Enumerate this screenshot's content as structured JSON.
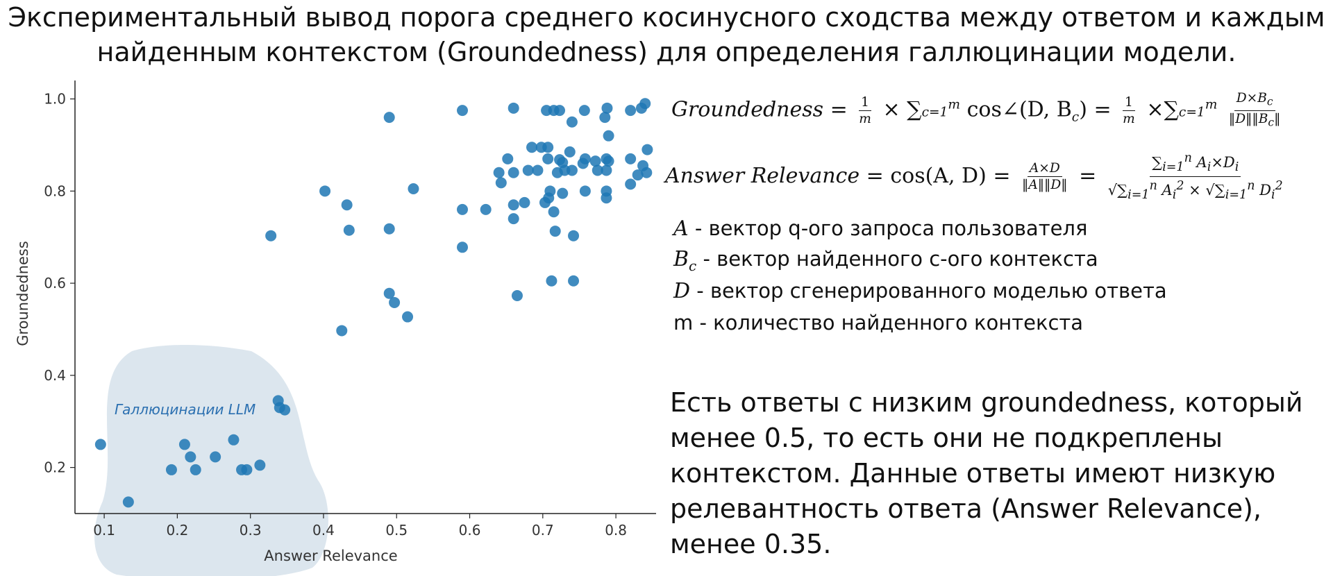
{
  "title": {
    "line1": "Экспериментальный вывод порога среднего косинусного сходства между ответом и каждым",
    "line2": "найденным контекстом (Groundedness) для определения галлюцинации модели."
  },
  "formulas": {
    "groundedness_lhs": "Groundedness",
    "groundedness_mid": "cos∠(D, B",
    "answer_relevance_lhs": "Answer Relevance",
    "answer_relevance_mid": "cos(A, D)"
  },
  "legend": [
    {
      "symbol": "A",
      "sub": "",
      "text": " - вектор q-ого запроса пользователя"
    },
    {
      "symbol": "B",
      "sub": "c",
      "text": " - вектор найденного с-ого контекста"
    },
    {
      "symbol": "D",
      "sub": "",
      "text": " - вектор сгенерированного моделью ответа"
    },
    {
      "symbol": "",
      "sub": "",
      "text": "m - количество найденного контекста"
    }
  ],
  "note": "Есть ответы с низким groundedness, который менее 0.5, то есть они не подкреплены контекстом. Данные ответы имеют низкую релевантность ответа (Answer Relevance), менее 0.35.",
  "chart_data": {
    "type": "scatter",
    "xlabel": "Answer Relevance",
    "ylabel": "Groundedness",
    "xlim": [
      0.06,
      0.855
    ],
    "ylim": [
      0.1,
      1.04
    ],
    "xticks": [
      0.1,
      0.2,
      0.3,
      0.4,
      0.5,
      0.6,
      0.7,
      0.8
    ],
    "yticks": [
      0.2,
      0.4,
      0.6,
      0.8,
      1.0
    ],
    "grid": false,
    "point_color": "#1f77b4",
    "region": {
      "label": "Галлюцинации LLM",
      "fill": "#dce6ee",
      "label_color": "#2a6fb0"
    },
    "points": [
      {
        "x": 0.095,
        "y": 0.25
      },
      {
        "x": 0.133,
        "y": 0.125
      },
      {
        "x": 0.192,
        "y": 0.195
      },
      {
        "x": 0.21,
        "y": 0.25
      },
      {
        "x": 0.218,
        "y": 0.223
      },
      {
        "x": 0.225,
        "y": 0.195
      },
      {
        "x": 0.252,
        "y": 0.223
      },
      {
        "x": 0.277,
        "y": 0.26
      },
      {
        "x": 0.288,
        "y": 0.195
      },
      {
        "x": 0.295,
        "y": 0.195
      },
      {
        "x": 0.313,
        "y": 0.205
      },
      {
        "x": 0.338,
        "y": 0.345
      },
      {
        "x": 0.34,
        "y": 0.33
      },
      {
        "x": 0.347,
        "y": 0.325
      },
      {
        "x": 0.328,
        "y": 0.703
      },
      {
        "x": 0.402,
        "y": 0.8
      },
      {
        "x": 0.425,
        "y": 0.497
      },
      {
        "x": 0.432,
        "y": 0.77
      },
      {
        "x": 0.435,
        "y": 0.715
      },
      {
        "x": 0.49,
        "y": 0.96
      },
      {
        "x": 0.49,
        "y": 0.718
      },
      {
        "x": 0.49,
        "y": 0.578
      },
      {
        "x": 0.497,
        "y": 0.558
      },
      {
        "x": 0.515,
        "y": 0.527
      },
      {
        "x": 0.523,
        "y": 0.805
      },
      {
        "x": 0.59,
        "y": 0.975
      },
      {
        "x": 0.59,
        "y": 0.76
      },
      {
        "x": 0.59,
        "y": 0.678
      },
      {
        "x": 0.622,
        "y": 0.76
      },
      {
        "x": 0.64,
        "y": 0.84
      },
      {
        "x": 0.643,
        "y": 0.818
      },
      {
        "x": 0.652,
        "y": 0.87
      },
      {
        "x": 0.66,
        "y": 0.98
      },
      {
        "x": 0.66,
        "y": 0.84
      },
      {
        "x": 0.66,
        "y": 0.77
      },
      {
        "x": 0.66,
        "y": 0.74
      },
      {
        "x": 0.665,
        "y": 0.573
      },
      {
        "x": 0.675,
        "y": 0.775
      },
      {
        "x": 0.68,
        "y": 0.845
      },
      {
        "x": 0.685,
        "y": 0.895
      },
      {
        "x": 0.693,
        "y": 0.845
      },
      {
        "x": 0.698,
        "y": 0.895
      },
      {
        "x": 0.703,
        "y": 0.775
      },
      {
        "x": 0.705,
        "y": 0.975
      },
      {
        "x": 0.707,
        "y": 0.895
      },
      {
        "x": 0.707,
        "y": 0.87
      },
      {
        "x": 0.708,
        "y": 0.785
      },
      {
        "x": 0.71,
        "y": 0.8
      },
      {
        "x": 0.712,
        "y": 0.605
      },
      {
        "x": 0.715,
        "y": 0.975
      },
      {
        "x": 0.715,
        "y": 0.755
      },
      {
        "x": 0.717,
        "y": 0.713
      },
      {
        "x": 0.72,
        "y": 0.84
      },
      {
        "x": 0.723,
        "y": 0.975
      },
      {
        "x": 0.723,
        "y": 0.868
      },
      {
        "x": 0.727,
        "y": 0.862
      },
      {
        "x": 0.727,
        "y": 0.795
      },
      {
        "x": 0.73,
        "y": 0.845
      },
      {
        "x": 0.737,
        "y": 0.885
      },
      {
        "x": 0.74,
        "y": 0.95
      },
      {
        "x": 0.74,
        "y": 0.845
      },
      {
        "x": 0.742,
        "y": 0.703
      },
      {
        "x": 0.742,
        "y": 0.605
      },
      {
        "x": 0.755,
        "y": 0.86
      },
      {
        "x": 0.757,
        "y": 0.975
      },
      {
        "x": 0.758,
        "y": 0.87
      },
      {
        "x": 0.758,
        "y": 0.8
      },
      {
        "x": 0.772,
        "y": 0.865
      },
      {
        "x": 0.775,
        "y": 0.845
      },
      {
        "x": 0.785,
        "y": 0.96
      },
      {
        "x": 0.787,
        "y": 0.87
      },
      {
        "x": 0.787,
        "y": 0.845
      },
      {
        "x": 0.787,
        "y": 0.8
      },
      {
        "x": 0.787,
        "y": 0.785
      },
      {
        "x": 0.788,
        "y": 0.98
      },
      {
        "x": 0.79,
        "y": 0.92
      },
      {
        "x": 0.79,
        "y": 0.865
      },
      {
        "x": 0.82,
        "y": 0.975
      },
      {
        "x": 0.82,
        "y": 0.87
      },
      {
        "x": 0.82,
        "y": 0.815
      },
      {
        "x": 0.83,
        "y": 0.835
      },
      {
        "x": 0.835,
        "y": 0.98
      },
      {
        "x": 0.837,
        "y": 0.855
      },
      {
        "x": 0.84,
        "y": 0.99
      },
      {
        "x": 0.842,
        "y": 0.84
      },
      {
        "x": 0.843,
        "y": 0.89
      }
    ]
  }
}
